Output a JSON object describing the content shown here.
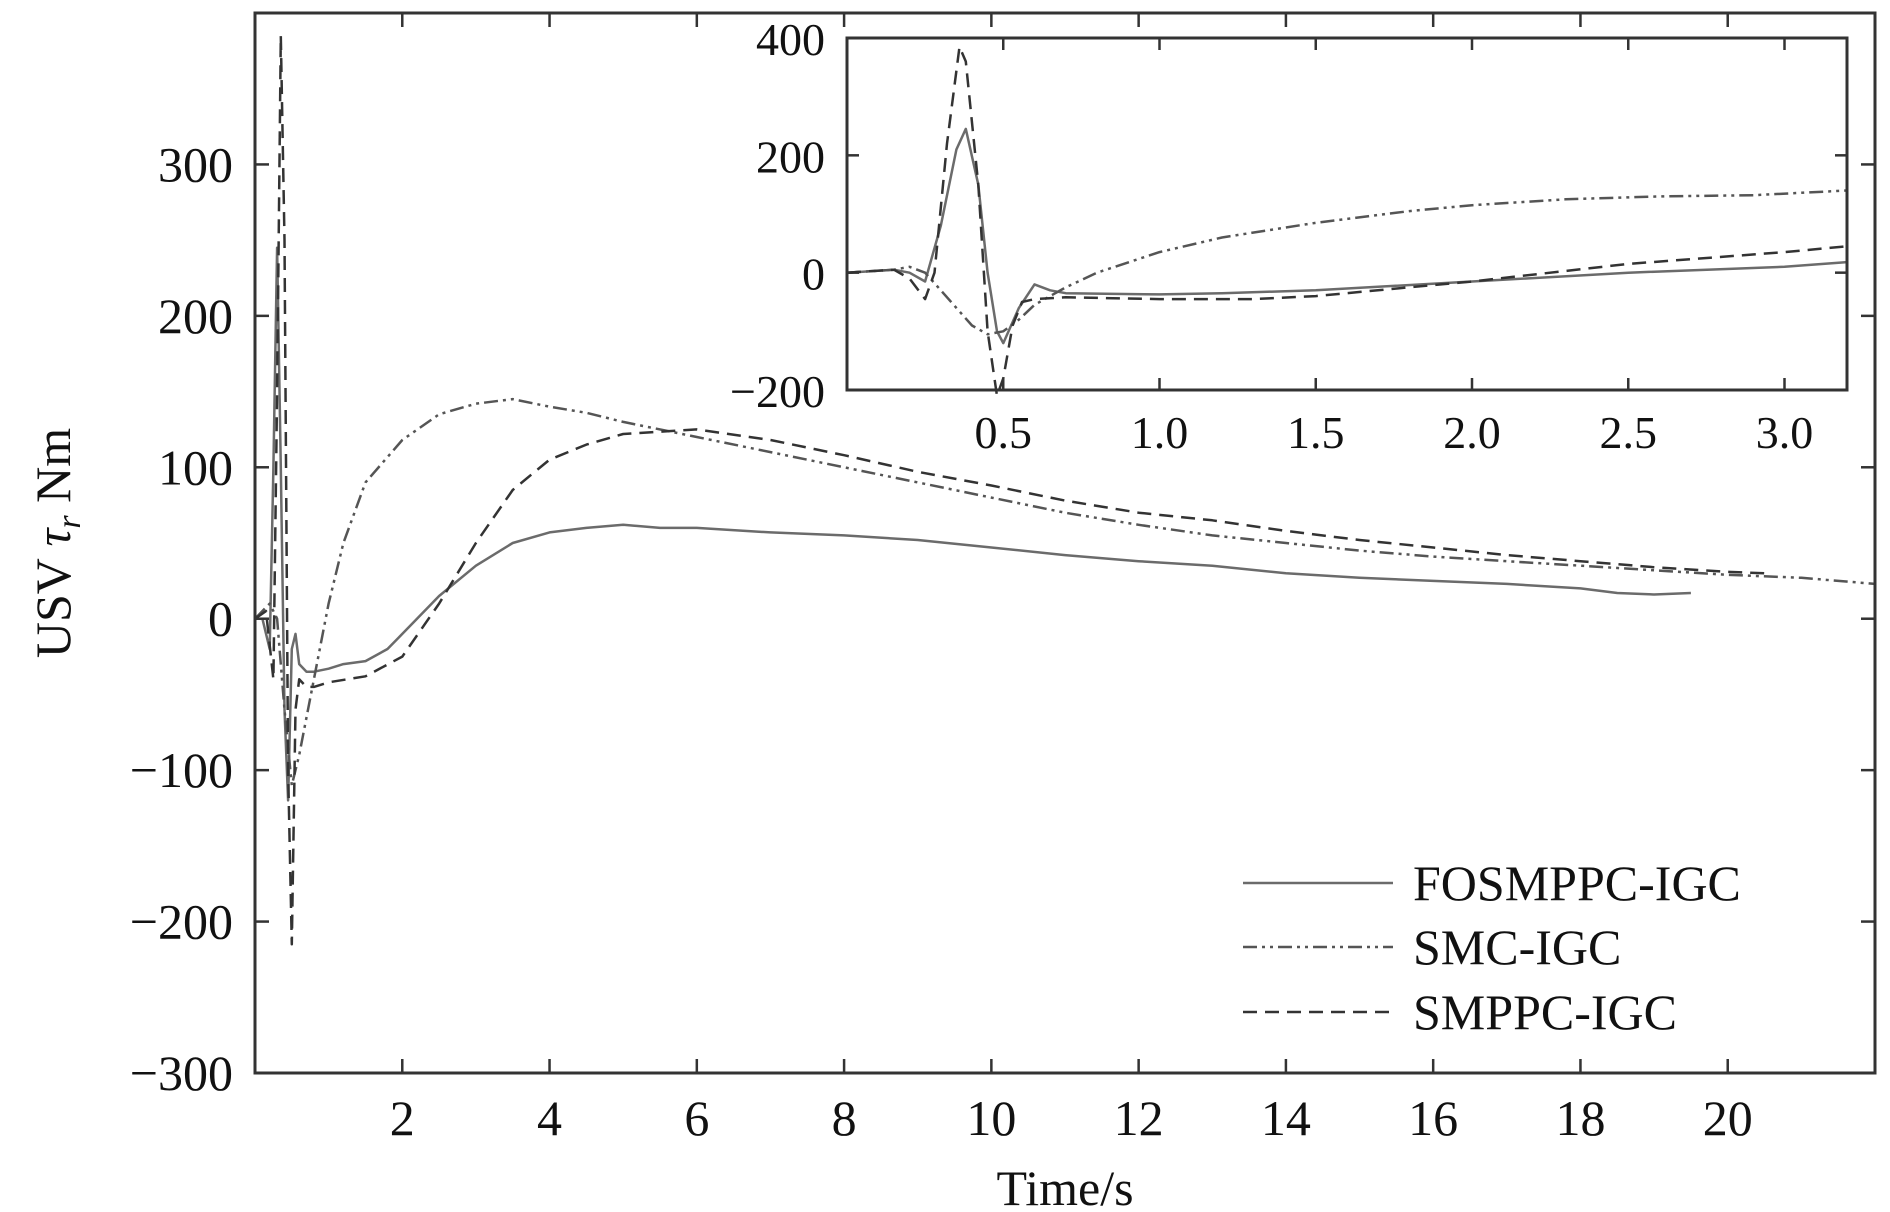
{
  "chart_data": {
    "type": "line",
    "xlabel": "Time/s",
    "ylabel_prefix": "USV ",
    "ylabel_symbol": "τ",
    "ylabel_subscript": "r",
    "ylabel_suffix": " Nm",
    "xlim": [
      0,
      22
    ],
    "ylim": [
      -300,
      400
    ],
    "xticks": [
      2,
      4,
      6,
      8,
      10,
      12,
      14,
      16,
      18,
      20
    ],
    "xtick_labels": [
      "2",
      "4",
      "6",
      "8",
      "10",
      "12",
      "14",
      "16",
      "18",
      "20"
    ],
    "yticks": [
      -300,
      -200,
      -100,
      0,
      100,
      200,
      300
    ],
    "ytick_labels": [
      "−300",
      "−200",
      "−100",
      "0",
      "100",
      "200",
      "300"
    ],
    "legend": {
      "placement": "bottom-right",
      "entries": [
        "FOSMPPC-IGC",
        "SMC-IGC",
        "SMPPC-IGC"
      ]
    },
    "series": [
      {
        "name": "FOSMPPC-IGC",
        "style": "solid",
        "color": "#6b6b6b",
        "x": [
          0.0,
          0.1,
          0.2,
          0.25,
          0.3,
          0.35,
          0.4,
          0.45,
          0.5,
          0.55,
          0.6,
          0.7,
          0.8,
          1.0,
          1.2,
          1.5,
          1.8,
          2.0,
          2.2,
          2.5,
          3.0,
          3.5,
          4.0,
          4.5,
          5.0,
          5.5,
          6.0,
          7.0,
          8.0,
          9.0,
          10.0,
          11.0,
          12.0,
          13.0,
          14.0,
          15.0,
          16.0,
          17.0,
          18.0,
          18.5,
          19.0,
          19.5
        ],
        "y": [
          0,
          0,
          -20,
          100,
          245,
          100,
          -60,
          -120,
          -20,
          -10,
          -30,
          -35,
          -35,
          -33,
          -30,
          -28,
          -20,
          -10,
          0,
          15,
          35,
          50,
          57,
          60,
          62,
          60,
          60,
          57,
          55,
          52,
          47,
          42,
          38,
          35,
          30,
          27,
          25,
          23,
          20,
          17,
          16,
          17
        ]
      },
      {
        "name": "SMC-IGC",
        "style": "dashdot",
        "color": "#555555",
        "x": [
          0.0,
          0.2,
          0.3,
          0.4,
          0.5,
          0.6,
          0.8,
          1.0,
          1.2,
          1.5,
          2.0,
          2.5,
          3.0,
          3.5,
          4.0,
          4.5,
          5.0,
          6.0,
          7.0,
          8.0,
          9.0,
          10.0,
          11.0,
          12.0,
          13.0,
          14.0,
          15.0,
          16.0,
          17.0,
          18.0,
          19.0,
          20.0,
          21.0,
          22.0
        ],
        "y": [
          0,
          10,
          0,
          -60,
          -110,
          -90,
          -40,
          10,
          50,
          90,
          118,
          135,
          142,
          145,
          140,
          136,
          130,
          120,
          110,
          100,
          90,
          80,
          70,
          62,
          55,
          50,
          45,
          41,
          38,
          35,
          32,
          29,
          27,
          23
        ]
      },
      {
        "name": "SMPPC-IGC",
        "style": "dashed",
        "color": "#333333",
        "x": [
          0.0,
          0.15,
          0.25,
          0.3,
          0.35,
          0.4,
          0.45,
          0.5,
          0.55,
          0.6,
          0.7,
          0.8,
          1.0,
          1.5,
          2.0,
          2.5,
          3.0,
          3.5,
          4.0,
          4.5,
          5.0,
          6.0,
          7.0,
          8.0,
          9.0,
          10.0,
          11.0,
          12.0,
          13.0,
          14.0,
          15.0,
          16.0,
          17.0,
          18.0,
          19.0,
          20.0,
          20.5
        ],
        "y": [
          0,
          5,
          -40,
          150,
          385,
          250,
          -100,
          -215,
          -60,
          -40,
          -45,
          -45,
          -42,
          -38,
          -25,
          10,
          50,
          85,
          105,
          115,
          122,
          125,
          118,
          108,
          97,
          88,
          78,
          70,
          65,
          58,
          52,
          47,
          42,
          38,
          34,
          31,
          30
        ]
      }
    ],
    "inset": {
      "xlim": [
        0,
        3.2
      ],
      "ylim": [
        -200,
        400
      ],
      "xticks": [
        0.5,
        1.0,
        1.5,
        2.0,
        2.5,
        3.0
      ],
      "xtick_labels": [
        "0.5",
        "1.0",
        "1.5",
        "2.0",
        "2.5",
        "3.0"
      ],
      "yticks": [
        -200,
        0,
        200,
        400
      ],
      "ytick_labels": [
        "−200",
        "0",
        "200",
        "400"
      ],
      "series": [
        {
          "name": "FOSMPPC-IGC",
          "style": "solid",
          "color": "#6b6b6b",
          "x": [
            0.0,
            0.15,
            0.2,
            0.25,
            0.3,
            0.35,
            0.38,
            0.42,
            0.45,
            0.48,
            0.5,
            0.55,
            0.6,
            0.65,
            0.7,
            1.0,
            1.2,
            1.5,
            2.0,
            2.5,
            3.0,
            3.2
          ],
          "y": [
            0,
            5,
            0,
            -15,
            80,
            210,
            245,
            150,
            0,
            -100,
            -120,
            -60,
            -20,
            -30,
            -35,
            -37,
            -35,
            -30,
            -15,
            0,
            10,
            18
          ]
        },
        {
          "name": "SMC-IGC",
          "style": "dashdot",
          "color": "#555555",
          "x": [
            0.0,
            0.15,
            0.2,
            0.25,
            0.3,
            0.35,
            0.4,
            0.45,
            0.5,
            0.55,
            0.6,
            0.7,
            0.8,
            1.0,
            1.2,
            1.5,
            1.8,
            2.0,
            2.3,
            2.6,
            2.9,
            3.2
          ],
          "y": [
            0,
            5,
            10,
            0,
            -30,
            -60,
            -90,
            -105,
            -100,
            -80,
            -55,
            -25,
            0,
            35,
            60,
            85,
            105,
            115,
            125,
            130,
            132,
            140
          ]
        },
        {
          "name": "SMPPC-IGC",
          "style": "dashed",
          "color": "#333333",
          "x": [
            0.0,
            0.15,
            0.2,
            0.25,
            0.28,
            0.32,
            0.36,
            0.38,
            0.42,
            0.45,
            0.48,
            0.5,
            0.53,
            0.56,
            0.6,
            0.7,
            1.0,
            1.3,
            1.5,
            1.8,
            2.0,
            2.5,
            3.0,
            3.2
          ],
          "y": [
            0,
            5,
            -10,
            -45,
            0,
            220,
            385,
            360,
            150,
            -100,
            -210,
            -180,
            -90,
            -50,
            -45,
            -42,
            -45,
            -45,
            -40,
            -25,
            -15,
            15,
            35,
            45
          ]
        }
      ]
    }
  }
}
